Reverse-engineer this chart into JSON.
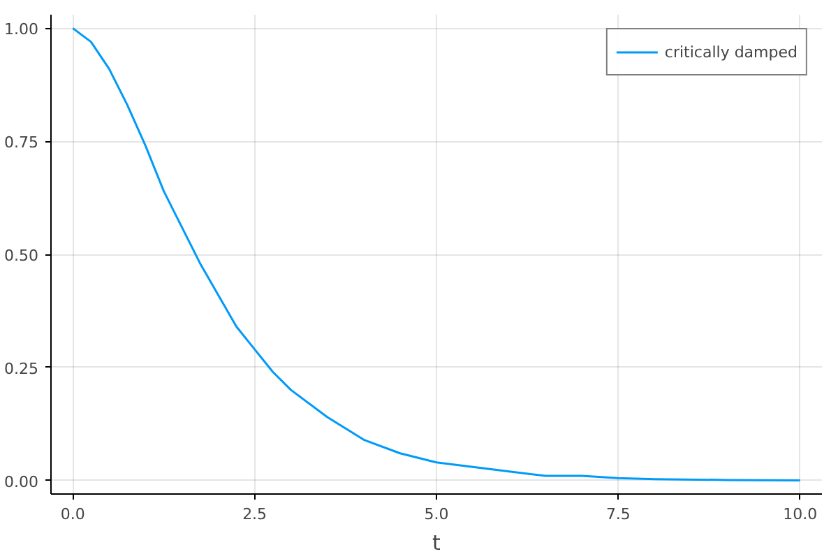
{
  "chart_data": {
    "type": "line",
    "xlabel": "t",
    "x": [
      0,
      0.25,
      0.5,
      0.75,
      1,
      1.25,
      1.5,
      1.75,
      2,
      2.25,
      2.5,
      2.75,
      3,
      3.5,
      4,
      4.5,
      5,
      5.5,
      6,
      6.5,
      7,
      7.5,
      8,
      9,
      10
    ],
    "series": [
      {
        "name": "critically damped",
        "color": "#009af9",
        "values": [
          1.0,
          0.97,
          0.91,
          0.83,
          0.74,
          0.64,
          0.56,
          0.48,
          0.41,
          0.34,
          0.29,
          0.24,
          0.2,
          0.14,
          0.09,
          0.06,
          0.04,
          0.03,
          0.02,
          0.01,
          0.01,
          0.005,
          0.003,
          0.001,
          0.0
        ]
      }
    ],
    "xlim": [
      -0.3,
      10.3
    ],
    "ylim": [
      -0.03,
      1.03
    ],
    "xticks": [
      {
        "value": 0,
        "label": "0.0"
      },
      {
        "value": 2.5,
        "label": "2.5"
      },
      {
        "value": 5,
        "label": "5.0"
      },
      {
        "value": 7.5,
        "label": "7.5"
      },
      {
        "value": 10,
        "label": "10.0"
      }
    ],
    "yticks": [
      {
        "value": 0,
        "label": "0.00"
      },
      {
        "value": 0.25,
        "label": "0.25"
      },
      {
        "value": 0.5,
        "label": "0.50"
      },
      {
        "value": 0.75,
        "label": "0.75"
      },
      {
        "value": 1,
        "label": "1.00"
      }
    ],
    "grid": true,
    "legend": "top right",
    "marker": "none",
    "line_style": "solid"
  }
}
